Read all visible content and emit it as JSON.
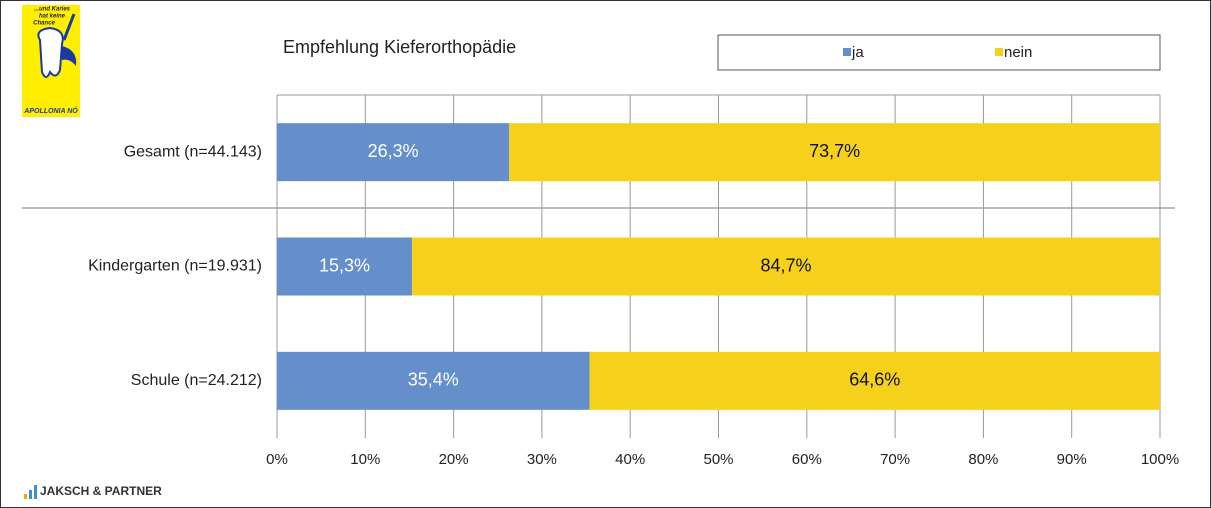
{
  "branding": {
    "logo_lines": [
      "...und Karies",
      "hat keine",
      "Chance"
    ],
    "logo_caption": "APOLLONIA NÖ",
    "footer": "JAKSCH & PARTNER"
  },
  "chart_data": {
    "type": "stacked_barh",
    "title": "Empfehlung Kieferorthopädie",
    "categories": [
      "Gesamt (n=44.143)",
      "Kindergarten (n=19.931)",
      "Schule (n=24.212)"
    ],
    "series": [
      {
        "name": "ja",
        "color": "#658fcb",
        "values": [
          26.3,
          15.3,
          35.4
        ],
        "value_labels": [
          "26,3%",
          "15,3%",
          "35,4%"
        ]
      },
      {
        "name": "nein",
        "color": "#f6d11b",
        "values": [
          73.7,
          84.7,
          64.6
        ],
        "value_labels": [
          "73,7%",
          "84,7%",
          "64,6%"
        ]
      }
    ],
    "xlim": [
      0,
      100
    ],
    "xticks": [
      {
        "value": 0,
        "label": "0%"
      },
      {
        "value": 10,
        "label": "10%"
      },
      {
        "value": 20,
        "label": "20%"
      },
      {
        "value": 30,
        "label": "30%"
      },
      {
        "value": 40,
        "label": "40%"
      },
      {
        "value": 50,
        "label": "50%"
      },
      {
        "value": 60,
        "label": "60%"
      },
      {
        "value": 70,
        "label": "70%"
      },
      {
        "value": 80,
        "label": "80%"
      },
      {
        "value": 90,
        "label": "90%"
      },
      {
        "value": 100,
        "label": "100%"
      }
    ],
    "grid": true,
    "legend": "top"
  }
}
